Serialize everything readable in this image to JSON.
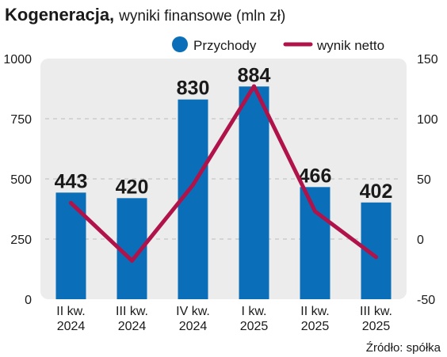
{
  "chart_data": {
    "type": "bar",
    "title": "Kogeneracja,",
    "subtitle": "wyniki finansowe (mln zł)",
    "categories": [
      [
        "II kw.",
        "2024"
      ],
      [
        "III kw.",
        "2024"
      ],
      [
        "IV kw.",
        "2024"
      ],
      [
        "I kw.",
        "2025"
      ],
      [
        "II kw.",
        "2025"
      ],
      [
        "III kw.",
        "2025"
      ]
    ],
    "series": [
      {
        "name": "Przychody",
        "type": "bar",
        "axis": "left",
        "color": "#0a6fb8",
        "values": [
          443,
          420,
          830,
          884,
          466,
          402
        ],
        "labels": [
          "443",
          "420",
          "830",
          "884",
          "466",
          "402"
        ]
      },
      {
        "name": "wynik netto",
        "type": "line",
        "axis": "right",
        "color": "#b0134a",
        "values": [
          30,
          -18,
          45,
          127,
          23,
          -15
        ]
      }
    ],
    "ylim_left": [
      0,
      1000
    ],
    "yticks_left": [
      "0",
      "250",
      "500",
      "750",
      "1000"
    ],
    "ylim_right": [
      -50,
      150
    ],
    "yticks_right": [
      "-50",
      "0",
      "50",
      "100",
      "150"
    ],
    "grid": true,
    "legend": "top-right",
    "source": "Źródło: spółka"
  }
}
